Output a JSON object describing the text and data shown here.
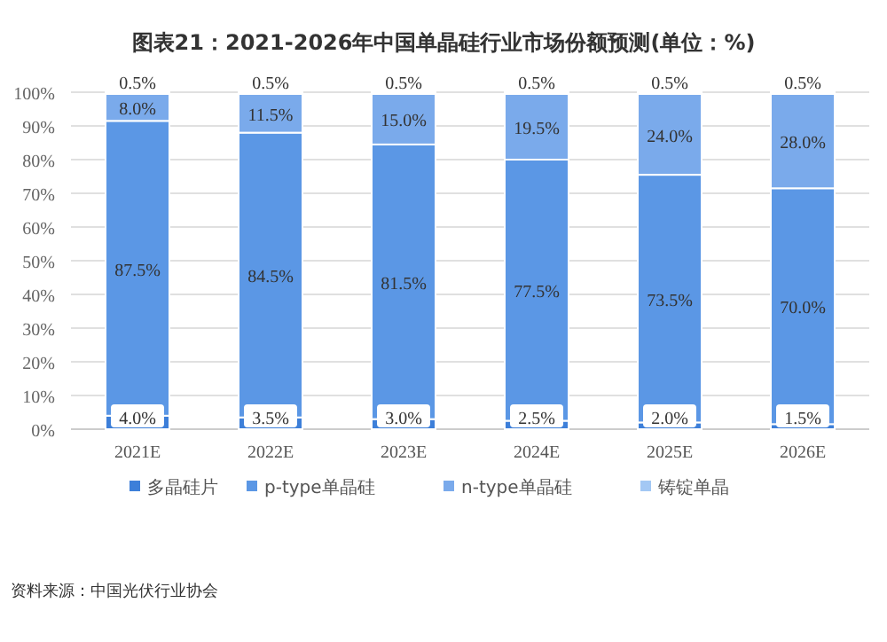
{
  "chart_data": {
    "type": "bar",
    "title": "图表21：2021-2026年中国单晶硅行业市场份额预测(单位：%)",
    "stacked": true,
    "categories": [
      "2021E",
      "2022E",
      "2023E",
      "2024E",
      "2025E",
      "2026E"
    ],
    "series": [
      {
        "name": "多晶硅片",
        "color": "#3d7fd9",
        "values": [
          4.0,
          3.5,
          3.0,
          2.5,
          2.0,
          1.5
        ],
        "value_labels": [
          "4.0%",
          "3.5%",
          "3.0%",
          "2.5%",
          "2.0%",
          "1.5%"
        ]
      },
      {
        "name": "p-type单晶硅",
        "color": "#5b97e5",
        "values": [
          87.5,
          84.5,
          81.5,
          77.5,
          73.5,
          70.0
        ],
        "value_labels": [
          "87.5%",
          "84.5%",
          "81.5%",
          "77.5%",
          "73.5%",
          "70.0%"
        ]
      },
      {
        "name": "n-type单晶硅",
        "color": "#7aaaeb",
        "values": [
          8.0,
          11.5,
          15.0,
          19.5,
          24.0,
          28.0
        ],
        "value_labels": [
          "8.0%",
          "11.5%",
          "15.0%",
          "19.5%",
          "24.0%",
          "28.0%"
        ]
      },
      {
        "name": "铸锭单晶",
        "color": "#a3c8f4",
        "values": [
          0.5,
          0.5,
          0.5,
          0.5,
          0.5,
          0.5
        ],
        "value_labels": [
          "0.5%",
          "0.5%",
          "0.5%",
          "0.5%",
          "0.5%",
          "0.5%"
        ]
      }
    ],
    "ylim": [
      0,
      100
    ],
    "yticks": [
      {
        "value": 0,
        "label": "0%"
      },
      {
        "value": 10,
        "label": "10%"
      },
      {
        "value": 20,
        "label": "20%"
      },
      {
        "value": 30,
        "label": "30%"
      },
      {
        "value": 40,
        "label": "40%"
      },
      {
        "value": 50,
        "label": "50%"
      },
      {
        "value": 60,
        "label": "60%"
      },
      {
        "value": 70,
        "label": "70%"
      },
      {
        "value": 80,
        "label": "80%"
      },
      {
        "value": 90,
        "label": "90%"
      },
      {
        "value": 100,
        "label": "100%"
      }
    ],
    "grid": "y",
    "legend": "bottom",
    "annotations": [
      "资料来源：中国光伏行业协会"
    ]
  }
}
